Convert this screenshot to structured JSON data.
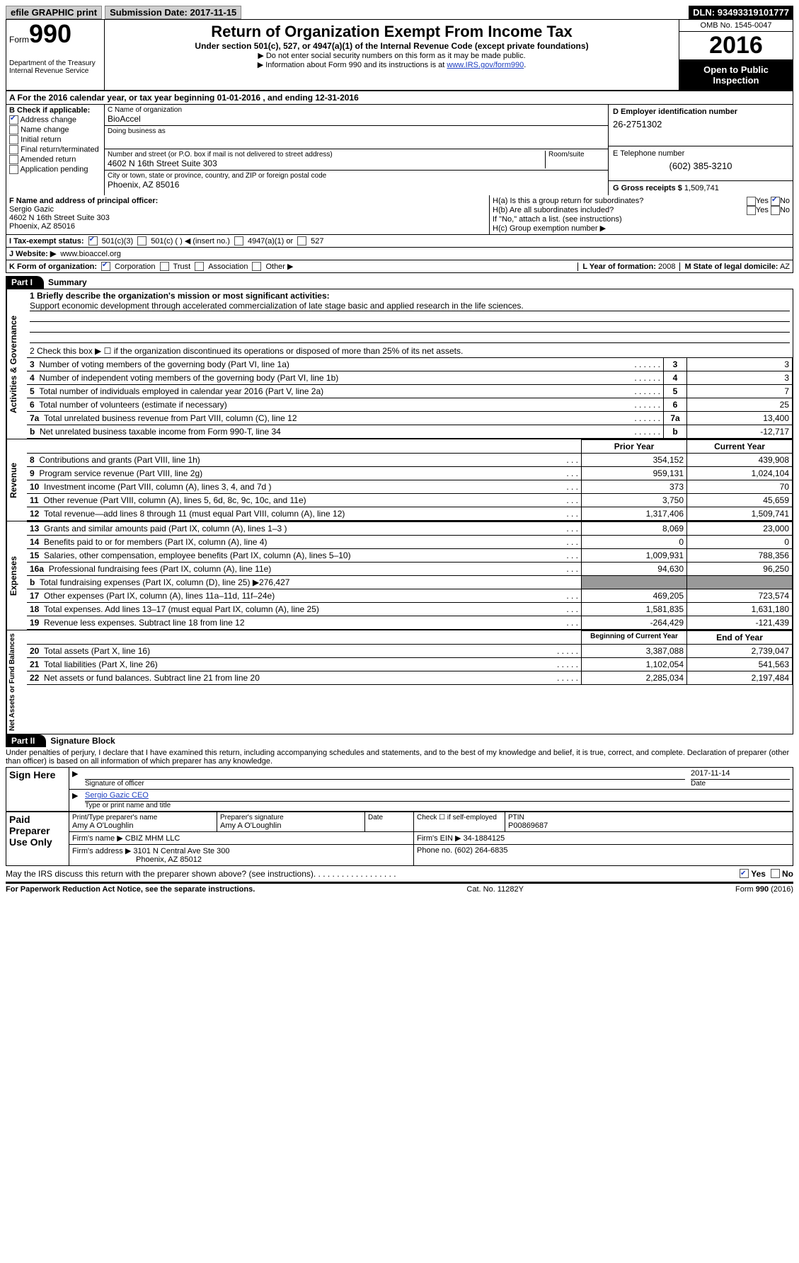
{
  "topbar": {
    "efile": "efile GRAPHIC print",
    "submission_label": "Submission Date:",
    "submission_date": "2017-11-15",
    "dln_label": "DLN:",
    "dln": "93493319101777"
  },
  "header": {
    "form_label": "Form",
    "form_number": "990",
    "dept1": "Department of the Treasury",
    "dept2": "Internal Revenue Service",
    "title": "Return of Organization Exempt From Income Tax",
    "sub": "Under section 501(c), 527, or 4947(a)(1) of the Internal Revenue Code (except private foundations)",
    "note1": "▶ Do not enter social security numbers on this form as it may be made public.",
    "note2_prefix": "▶ Information about Form 990 and its instructions is at ",
    "note2_link": "www.IRS.gov/form990",
    "omb": "OMB No. 1545-0047",
    "year": "2016",
    "open1": "Open to Public",
    "open2": "Inspection"
  },
  "rowA": "A  For the 2016 calendar year, or tax year beginning 01-01-2016   , and ending 12-31-2016",
  "colB": {
    "header": "B Check if applicable:",
    "addr_change": "Address change",
    "name_change": "Name change",
    "initial": "Initial return",
    "final": "Final return/terminated",
    "amended": "Amended return",
    "app_pending": "Application pending"
  },
  "colC": {
    "name_lbl": "C Name of organization",
    "name": "BioAccel",
    "dba_lbl": "Doing business as",
    "dba": "",
    "street_lbl": "Number and street (or P.O. box if mail is not delivered to street address)",
    "room_lbl": "Room/suite",
    "street": "4602 N 16th Street Suite 303",
    "city_lbl": "City or town, state or province, country, and ZIP or foreign postal code",
    "city": "Phoenix, AZ 85016"
  },
  "colD": {
    "ein_lbl": "D Employer identification number",
    "ein": "26-2751302",
    "phone_lbl": "E Telephone number",
    "phone": "(602) 385-3210",
    "gross_lbl": "G Gross receipts $",
    "gross": "1,509,741"
  },
  "colF": {
    "lbl": "F Name and address of principal officer:",
    "name": "Sergio Gazic",
    "addr1": "4602 N 16th Street Suite 303",
    "addr2": "Phoenix, AZ  85016"
  },
  "colH": {
    "ha": "H(a)  Is this a group return for subordinates?",
    "hb": "H(b)  Are all subordinates included?",
    "hnote": "If \"No,\" attach a list. (see instructions)",
    "hc": "H(c)  Group exemption number ▶",
    "yes": "Yes",
    "no": "No"
  },
  "rowI": {
    "lbl": "I  Tax-exempt status:",
    "opt1": "501(c)(3)",
    "opt2": "501(c) (   ) ◀ (insert no.)",
    "opt3": "4947(a)(1) or",
    "opt4": "527"
  },
  "rowJ": {
    "lbl": "J  Website: ▶",
    "val": "www.bioaccel.org"
  },
  "rowK": {
    "lbl": "K Form of organization:",
    "corp": "Corporation",
    "trust": "Trust",
    "assoc": "Association",
    "other": "Other ▶",
    "L_lbl": "L Year of formation:",
    "L_val": "2008",
    "M_lbl": "M State of legal domicile:",
    "M_val": "AZ"
  },
  "part1": {
    "tab": "Part I",
    "title": "Summary",
    "side_gov": "Activities & Governance",
    "side_rev": "Revenue",
    "side_exp": "Expenses",
    "side_net": "Net Assets or Fund Balances",
    "line1_lbl": "1  Briefly describe the organization's mission or most significant activities:",
    "line1_val": "Support economic development through accelerated commercialization of late stage basic and applied research in the life sciences.",
    "line2": "2   Check this box ▶  ☐  if the organization discontinued its operations or disposed of more than 25% of its net assets.",
    "lines_gov": [
      {
        "n": "3",
        "d": "Number of voting members of the governing body (Part VI, line 1a)",
        "v": "3"
      },
      {
        "n": "4",
        "d": "Number of independent voting members of the governing body (Part VI, line 1b)",
        "v": "3"
      },
      {
        "n": "5",
        "d": "Total number of individuals employed in calendar year 2016 (Part V, line 2a)",
        "v": "7"
      },
      {
        "n": "6",
        "d": "Total number of volunteers (estimate if necessary)",
        "v": "25"
      },
      {
        "n": "7a",
        "d": "Total unrelated business revenue from Part VIII, column (C), line 12",
        "v": "13,400"
      },
      {
        "n": "b",
        "d": "Net unrelated business taxable income from Form 990-T, line 34",
        "v": "-12,717"
      }
    ],
    "col_prior": "Prior Year",
    "col_current": "Current Year",
    "lines_rev": [
      {
        "n": "8",
        "d": "Contributions and grants (Part VIII, line 1h)",
        "p": "354,152",
        "c": "439,908"
      },
      {
        "n": "9",
        "d": "Program service revenue (Part VIII, line 2g)",
        "p": "959,131",
        "c": "1,024,104"
      },
      {
        "n": "10",
        "d": "Investment income (Part VIII, column (A), lines 3, 4, and 7d )",
        "p": "373",
        "c": "70"
      },
      {
        "n": "11",
        "d": "Other revenue (Part VIII, column (A), lines 5, 6d, 8c, 9c, 10c, and 11e)",
        "p": "3,750",
        "c": "45,659"
      },
      {
        "n": "12",
        "d": "Total revenue—add lines 8 through 11 (must equal Part VIII, column (A), line 12)",
        "p": "1,317,406",
        "c": "1,509,741"
      }
    ],
    "lines_exp": [
      {
        "n": "13",
        "d": "Grants and similar amounts paid (Part IX, column (A), lines 1–3 )",
        "p": "8,069",
        "c": "23,000"
      },
      {
        "n": "14",
        "d": "Benefits paid to or for members (Part IX, column (A), line 4)",
        "p": "0",
        "c": "0"
      },
      {
        "n": "15",
        "d": "Salaries, other compensation, employee benefits (Part IX, column (A), lines 5–10)",
        "p": "1,009,931",
        "c": "788,356"
      },
      {
        "n": "16a",
        "d": "Professional fundraising fees (Part IX, column (A), line 11e)",
        "p": "94,630",
        "c": "96,250"
      },
      {
        "n": "b",
        "d": "Total fundraising expenses (Part IX, column (D), line 25) ▶276,427",
        "p": "",
        "c": "",
        "shaded": true
      },
      {
        "n": "17",
        "d": "Other expenses (Part IX, column (A), lines 11a–11d, 11f–24e)",
        "p": "469,205",
        "c": "723,574"
      },
      {
        "n": "18",
        "d": "Total expenses. Add lines 13–17 (must equal Part IX, column (A), line 25)",
        "p": "1,581,835",
        "c": "1,631,180"
      },
      {
        "n": "19",
        "d": "Revenue less expenses. Subtract line 18 from line 12",
        "p": "-264,429",
        "c": "-121,439"
      }
    ],
    "col_beg": "Beginning of Current Year",
    "col_end": "End of Year",
    "lines_net": [
      {
        "n": "20",
        "d": "Total assets (Part X, line 16)",
        "p": "3,387,088",
        "c": "2,739,047"
      },
      {
        "n": "21",
        "d": "Total liabilities (Part X, line 26)",
        "p": "1,102,054",
        "c": "541,563"
      },
      {
        "n": "22",
        "d": "Net assets or fund balances. Subtract line 21 from line 20",
        "p": "2,285,034",
        "c": "2,197,484"
      }
    ]
  },
  "part2": {
    "tab": "Part II",
    "title": "Signature Block",
    "perjury": "Under penalties of perjury, I declare that I have examined this return, including accompanying schedules and statements, and to the best of my knowledge and belief, it is true, correct, and complete. Declaration of preparer (other than officer) is based on all information of which preparer has any knowledge.",
    "sign_here": "Sign Here",
    "sig_officer": "Signature of officer",
    "sig_date": "2017-11-14",
    "date_lbl": "Date",
    "officer_name": "Sergio Gazic CEO",
    "type_name": "Type or print name and title",
    "paid": "Paid Preparer Use Only",
    "prep_name_lbl": "Print/Type preparer's name",
    "prep_name": "Amy A O'Loughlin",
    "prep_sig_lbl": "Preparer's signature",
    "prep_sig": "Amy A O'Loughlin",
    "prep_date_lbl": "Date",
    "self_emp": "Check ☐ if self-employed",
    "ptin_lbl": "PTIN",
    "ptin": "P00869687",
    "firm_name_lbl": "Firm's name    ▶",
    "firm_name": "CBIZ MHM LLC",
    "firm_ein_lbl": "Firm's EIN ▶",
    "firm_ein": "34-1884125",
    "firm_addr_lbl": "Firm's address ▶",
    "firm_addr1": "3101 N Central Ave Ste 300",
    "firm_addr2": "Phoenix, AZ  85012",
    "firm_phone_lbl": "Phone no.",
    "firm_phone": "(602) 264-6835",
    "discuss": "May the IRS discuss this return with the preparer shown above? (see instructions)"
  },
  "footer": {
    "left": "For Paperwork Reduction Act Notice, see the separate instructions.",
    "center": "Cat. No. 11282Y",
    "right": "Form 990 (2016)"
  }
}
